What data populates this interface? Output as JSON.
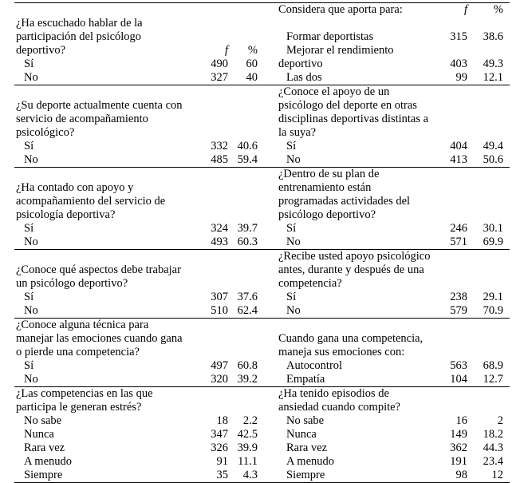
{
  "blocks": [
    {
      "left": {
        "rows": 6,
        "items": [
          {
            "label": "¿Ha escuchado hablar de la"
          },
          {
            "label": "participación del psicólogo"
          },
          {
            "label": "deportivo?",
            "f": "f",
            "p": "%",
            "header": true
          },
          {
            "label": "Sí",
            "f": "490",
            "p": "60",
            "indent": true
          },
          {
            "label": "No",
            "f": "327",
            "p": "40",
            "indent": true
          }
        ]
      },
      "right": {
        "rows": 6,
        "items": [
          {
            "label": "Considera que aporta para:",
            "f": "f",
            "p": "%",
            "header": true
          },
          {
            "label": ""
          },
          {
            "label": "Formar deportistas",
            "f": "315",
            "p": "38.6",
            "indent": true
          },
          {
            "label": "Mejorar el rendimiento",
            "indent": true
          },
          {
            "label": "deportivo",
            "f": "403",
            "p": "49.3"
          },
          {
            "label": "Las dos",
            "f": "99",
            "p": "12.1",
            "indent": true
          }
        ]
      }
    },
    {
      "left": {
        "rows": 6,
        "items": [
          {
            "label": "¿Su deporte actualmente cuenta con"
          },
          {
            "label": "servicio de acompañamiento"
          },
          {
            "label": "psicológico?"
          },
          {
            "label": "Sí",
            "f": "332",
            "p": "40.6",
            "indent": true
          },
          {
            "label": "No",
            "f": "485",
            "p": "59.4",
            "indent": true
          }
        ]
      },
      "right": {
        "rows": 6,
        "items": [
          {
            "label": "¿Conoce el apoyo de un"
          },
          {
            "label": "psicólogo del deporte en otras"
          },
          {
            "label": "disciplinas deportivas distintas a"
          },
          {
            "label": "la suya?"
          },
          {
            "label": "Sí",
            "f": "404",
            "p": "49.4",
            "indent": true
          },
          {
            "label": "No",
            "f": "413",
            "p": "50.6",
            "indent": true
          }
        ]
      }
    },
    {
      "left": {
        "rows": 6,
        "items": [
          {
            "label": "¿Ha contado con apoyo y"
          },
          {
            "label": "acompañamiento del servicio de"
          },
          {
            "label": "psicología deportiva?"
          },
          {
            "label": "Sí",
            "f": "324",
            "p": "39.7",
            "indent": true
          },
          {
            "label": "No",
            "f": "493",
            "p": "60.3",
            "indent": true
          }
        ]
      },
      "right": {
        "rows": 6,
        "items": [
          {
            "label": "¿Dentro de su plan de"
          },
          {
            "label": "entrenamiento están"
          },
          {
            "label": "programadas actividades del"
          },
          {
            "label": "psicólogo deportivo?"
          },
          {
            "label": "Sí",
            "f": "246",
            "p": "30.1",
            "indent": true
          },
          {
            "label": "No",
            "f": "571",
            "p": "69.9",
            "indent": true
          }
        ]
      }
    },
    {
      "left": {
        "rows": 5,
        "items": [
          {
            "label": "¿Conoce qué aspectos debe trabajar"
          },
          {
            "label": "un psicólogo deportivo?"
          },
          {
            "label": "Sí",
            "f": "307",
            "p": "37.6",
            "indent": true
          },
          {
            "label": "No",
            "f": "510",
            "p": "62.4",
            "indent": true
          }
        ]
      },
      "right": {
        "rows": 5,
        "items": [
          {
            "label": "¿Recibe usted apoyo psicológico"
          },
          {
            "label": "antes, durante y después de una"
          },
          {
            "label": "competencia?"
          },
          {
            "label": "Sí",
            "f": "238",
            "p": "29.1",
            "indent": true
          },
          {
            "label": "No",
            "f": "579",
            "p": "70.9",
            "indent": true
          }
        ]
      }
    },
    {
      "left": {
        "rows": 5,
        "items": [
          {
            "label": "¿Conoce alguna técnica para"
          },
          {
            "label": "manejar las emociones cuando gana"
          },
          {
            "label": "o pierde una competencia?"
          },
          {
            "label": "Sí",
            "f": "497",
            "p": "60.8",
            "indent": true
          },
          {
            "label": "No",
            "f": "320",
            "p": "39.2",
            "indent": true
          }
        ]
      },
      "right": {
        "rows": 5,
        "items": [
          {
            "label": "Cuando gana una competencia,"
          },
          {
            "label": "maneja sus emociones con:"
          },
          {
            "label": "Autocontrol",
            "f": "563",
            "p": "68.9",
            "indent": true
          },
          {
            "label": "Empatía",
            "f": "104",
            "p": "12.7",
            "indent": true
          }
        ]
      }
    },
    {
      "left": {
        "rows": 7,
        "items": [
          {
            "label": "¿Las competencias en las que"
          },
          {
            "label": "participa le generan estrés?"
          },
          {
            "label": "No sabe",
            "f": "18",
            "p": "2.2",
            "indent": true
          },
          {
            "label": "Nunca",
            "f": "347",
            "p": "42.5",
            "indent": true
          },
          {
            "label": "Rara vez",
            "f": "326",
            "p": "39.9",
            "indent": true
          },
          {
            "label": "A menudo",
            "f": "91",
            "p": "11.1",
            "indent": true
          },
          {
            "label": "Siempre",
            "f": "35",
            "p": "4.3",
            "indent": true
          }
        ]
      },
      "right": {
        "rows": 7,
        "items": [
          {
            "label": "¿Ha tenido episodios de"
          },
          {
            "label": "ansiedad cuando compite?"
          },
          {
            "label": "No sabe",
            "f": "16",
            "p": "2",
            "indent": true
          },
          {
            "label": "Nunca",
            "f": "149",
            "p": "18.2",
            "indent": true
          },
          {
            "label": "Rara vez",
            "f": "362",
            "p": "44.3",
            "indent": true
          },
          {
            "label": "A menudo",
            "f": "191",
            "p": "23.4",
            "indent": true
          },
          {
            "label": "Siempre",
            "f": "98",
            "p": "12",
            "indent": true
          }
        ]
      }
    }
  ]
}
